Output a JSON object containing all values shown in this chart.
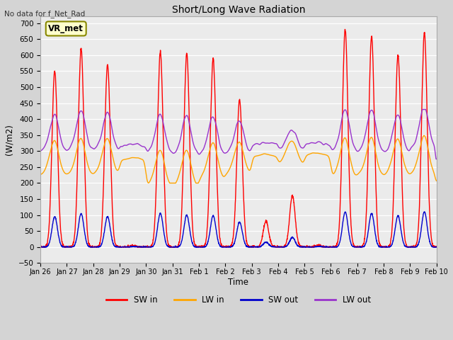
{
  "title": "Short/Long Wave Radiation",
  "xlabel": "Time",
  "ylabel": "(W/m2)",
  "annotation_text": "No data for f_Net_Rad",
  "box_label": "VR_met",
  "ylim": [
    -50,
    720
  ],
  "fig_bg": "#d4d4d4",
  "plot_bg": "#ebebeb",
  "sw_in_color": "#ff0000",
  "lw_in_color": "#ffa500",
  "sw_out_color": "#0000cc",
  "lw_out_color": "#9933cc",
  "line_width": 1.0,
  "legend_entries": [
    "SW in",
    "LW in",
    "SW out",
    "LW out"
  ],
  "x_tick_labels": [
    "Jan 26",
    "Jan 27",
    "Jan 28",
    "Jan 29",
    "Jan 30",
    "Jan 31",
    "Feb 1",
    "Feb 2",
    "Feb 3",
    "Feb 4",
    "Feb 5",
    "Feb 6",
    "Feb 7",
    "Feb 8",
    "Feb 9",
    "Feb 10"
  ],
  "num_days": 15,
  "points_per_day": 144
}
